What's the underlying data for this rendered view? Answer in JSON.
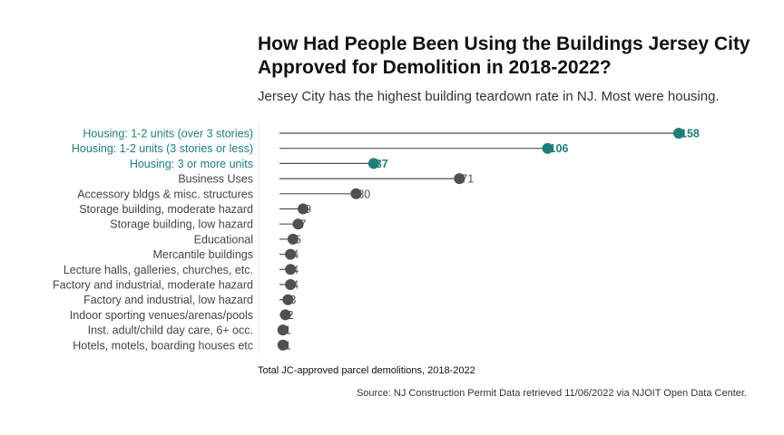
{
  "chart_data": {
    "type": "lollipop",
    "title": "How Had People Been Using the Buildings Jersey City Approved for Demolition in 2018-2022?",
    "subtitle": "Jersey City has the highest building teardown rate in NJ. Most were housing.",
    "xlabel": "Total JC-approved parcel demolitions, 2018-2022",
    "source": "Source: NJ Construction Permit Data retrieved 11/06/2022 via NJOIT Open Data Center.",
    "xlim": [
      0,
      158
    ],
    "grid": false,
    "categories": [
      "Housing: 1-2 units (over 3 stories)",
      "Housing: 1-2 units (3 stories or less)",
      "Housing: 3 or more units",
      "Business Uses",
      "Accessory bldgs & misc. structures",
      "Storage building, moderate hazard",
      "Storage building, low hazard",
      "Educational",
      "Mercantile buildings",
      "Lecture halls, galleries, churches, etc.",
      "Factory and industrial, moderate hazard",
      "Factory and industrial, low hazard",
      "Indoor sporting venues/arenas/pools",
      "Inst. adult/child day care, 6+ occ.",
      "Hotels, motels, boarding houses etc"
    ],
    "values": [
      158,
      106,
      37,
      71,
      30,
      9,
      7,
      5,
      4,
      4,
      4,
      3,
      2,
      1,
      1
    ],
    "highlighted": [
      true,
      true,
      true,
      false,
      false,
      false,
      false,
      false,
      false,
      false,
      false,
      false,
      false,
      false,
      false
    ],
    "colors": {
      "highlight": "#1f7f78",
      "default": "#505050",
      "stem": "#505050",
      "label_default": "#444444"
    }
  }
}
